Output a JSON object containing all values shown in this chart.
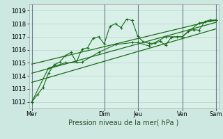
{
  "xlabel": "Pression niveau de la mer( hPa )",
  "ylim": [
    1011.5,
    1019.5
  ],
  "yticks": [
    1012,
    1013,
    1014,
    1015,
    1016,
    1017,
    1018,
    1019
  ],
  "bg_color": "#cce8e0",
  "plot_bg_color": "#d8f0e8",
  "grid_color": "#c0dcd4",
  "line_color": "#1a6b1a",
  "vline_color": "#6a7a8a",
  "xtick_labels": [
    "Mer",
    "",
    "Dim",
    "Jeu",
    "",
    "Ven",
    "",
    "Sam"
  ],
  "xtick_positions": [
    0,
    8,
    13,
    19,
    22,
    27,
    29,
    33
  ],
  "vline_positions": [
    0,
    13,
    19,
    27,
    33
  ],
  "series1_x": [
    0,
    1,
    2,
    3,
    4,
    5,
    6,
    7,
    8,
    9,
    10,
    11,
    12,
    13,
    14,
    15,
    16,
    17,
    18,
    19,
    20,
    21,
    22,
    23,
    24,
    25,
    26,
    27,
    28,
    29,
    30,
    31,
    32,
    33
  ],
  "series1_y": [
    1012.0,
    1012.55,
    1013.1,
    1014.2,
    1014.85,
    1015.05,
    1015.55,
    1015.8,
    1015.05,
    1016.05,
    1016.15,
    1016.9,
    1017.0,
    1016.45,
    1017.8,
    1018.0,
    1017.7,
    1018.35,
    1018.25,
    1017.05,
    1016.6,
    1016.5,
    1016.5,
    1016.65,
    1016.35,
    1016.95,
    1017.0,
    1017.0,
    1017.4,
    1017.55,
    1017.5,
    1018.15,
    1018.3,
    1018.25
  ],
  "series2_x": [
    0,
    3,
    6,
    9,
    12,
    15,
    18,
    19,
    21,
    24,
    27,
    30,
    33
  ],
  "series2_y": [
    1012.0,
    1014.6,
    1015.0,
    1015.05,
    1015.8,
    1016.4,
    1016.55,
    1016.55,
    1016.3,
    1017.0,
    1017.0,
    1018.05,
    1018.25
  ],
  "trend1_x": [
    0,
    33
  ],
  "trend1_y": [
    1013.5,
    1017.6
  ],
  "trend2_x": [
    0,
    33
  ],
  "trend2_y": [
    1014.2,
    1018.1
  ],
  "trend3_x": [
    0,
    33
  ],
  "trend3_y": [
    1014.9,
    1018.3
  ]
}
